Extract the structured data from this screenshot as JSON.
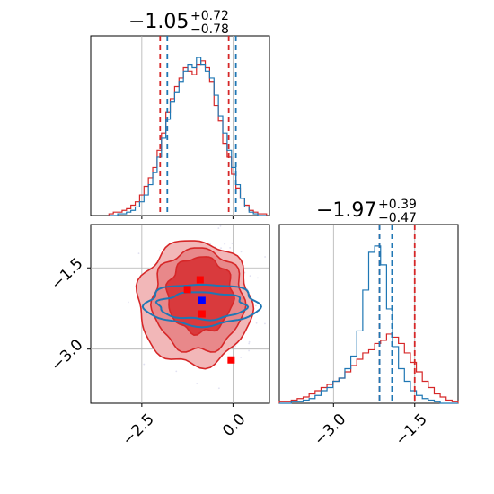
{
  "chart_data": {
    "type": "corner",
    "colors": {
      "red": "#d62728",
      "blue": "#1f77b4",
      "red_fill": "#e8888a",
      "red_dark": "#d62728",
      "marker_red": "#ff0000",
      "marker_blue": "#0000ff",
      "grid": "#b0b0b0"
    },
    "axes": {
      "p1_range": [
        -3.9,
        1.0
      ],
      "p2_range": [
        -4.0,
        -0.7
      ]
    },
    "titles": {
      "p1": {
        "value": "−1.05",
        "plus": "+0.72",
        "minus": "−0.78"
      },
      "p2": {
        "value": "−1.97",
        "plus": "+0.39",
        "minus": "−0.47"
      }
    },
    "ticks": {
      "p1": [
        {
          "value": -2.5,
          "label": "−2.5"
        },
        {
          "value": 0.0,
          "label": "0.0"
        }
      ],
      "p2_x": [
        {
          "value": -3.0,
          "label": "−3.0"
        },
        {
          "value": -1.5,
          "label": "−1.5"
        }
      ],
      "p2_y": [
        {
          "value": -1.5,
          "label": "−1.5"
        },
        {
          "value": -3.0,
          "label": "−3.0"
        }
      ]
    },
    "grid": true,
    "reference_lines": {
      "p1": [
        -1.8,
        0.08
      ],
      "p2": [
        -2.15,
        -1.5
      ]
    },
    "hist_p1": {
      "bins": [
        -3.4,
        -3.28,
        -3.16,
        -3.04,
        -2.92,
        -2.8,
        -2.68,
        -2.56,
        -2.44,
        -2.32,
        -2.2,
        -2.08,
        -1.96,
        -1.84,
        -1.72,
        -1.6,
        -1.48,
        -1.36,
        -1.24,
        -1.12,
        -1.0,
        -0.88,
        -0.76,
        -0.64,
        -0.52,
        -0.4,
        -0.28,
        -0.16,
        -0.04,
        0.08,
        0.2,
        0.32,
        0.44,
        0.56,
        0.68,
        0.8,
        0.92
      ],
      "series": [
        {
          "color": "red",
          "counts": [
            1,
            2,
            2,
            3,
            4,
            6,
            8,
            12,
            17,
            22,
            28,
            38,
            48,
            60,
            68,
            75,
            80,
            86,
            84,
            82,
            88,
            90,
            86,
            78,
            64,
            55,
            42,
            34,
            24,
            16,
            10,
            6,
            3,
            2,
            1,
            1
          ]
        },
        {
          "color": "blue",
          "counts": [
            0,
            0,
            1,
            1,
            2,
            3,
            5,
            8,
            12,
            18,
            25,
            34,
            45,
            56,
            66,
            72,
            78,
            84,
            88,
            86,
            92,
            88,
            84,
            80,
            70,
            58,
            48,
            38,
            28,
            18,
            10,
            5,
            2,
            1,
            0,
            0
          ]
        }
      ]
    },
    "hist_p2": {
      "bins": [
        -4.0,
        -3.89,
        -3.78,
        -3.67,
        -3.56,
        -3.45,
        -3.34,
        -3.23,
        -3.12,
        -3.01,
        -2.9,
        -2.79,
        -2.68,
        -2.57,
        -2.46,
        -2.35,
        -2.24,
        -2.13,
        -2.02,
        -1.91,
        -1.8,
        -1.69,
        -1.58,
        -1.47,
        -1.36,
        -1.25,
        -1.14,
        -1.03,
        -0.92,
        -0.81,
        -0.7
      ],
      "series": [
        {
          "color": "red",
          "counts": [
            1,
            1,
            2,
            3,
            4,
            6,
            8,
            10,
            12,
            14,
            16,
            20,
            24,
            28,
            32,
            34,
            38,
            40,
            44,
            42,
            38,
            32,
            26,
            20,
            14,
            10,
            6,
            4,
            2,
            1
          ]
        },
        {
          "color": "blue",
          "counts": [
            0,
            0,
            1,
            1,
            2,
            3,
            5,
            8,
            10,
            14,
            16,
            22,
            30,
            46,
            72,
            96,
            100,
            88,
            60,
            36,
            22,
            14,
            8,
            5,
            3,
            2,
            1,
            0,
            0,
            0
          ]
        }
      ]
    },
    "contour_2d": {
      "red_levels": [
        {
          "center": [
            -1.05,
            -2.15
          ],
          "rx": 1.55,
          "ry": 1.15
        },
        {
          "center": [
            -0.95,
            -2.1
          ],
          "rx": 1.25,
          "ry": 0.95
        },
        {
          "center": [
            -0.9,
            -2.0
          ],
          "rx": 0.9,
          "ry": 0.7
        }
      ],
      "blue_levels": [
        {
          "center": [
            -0.85,
            -2.18
          ],
          "rx": 1.55,
          "ry": 0.38
        },
        {
          "center": [
            -0.85,
            -2.2
          ],
          "rx": 1.2,
          "ry": 0.25
        }
      ],
      "markers": [
        {
          "x": -0.9,
          "y": -1.72,
          "color": "red"
        },
        {
          "x": -1.25,
          "y": -1.9,
          "color": "red"
        },
        {
          "x": -0.85,
          "y": -2.35,
          "color": "red"
        },
        {
          "x": -0.05,
          "y": -3.2,
          "color": "red"
        },
        {
          "x": -0.85,
          "y": -2.1,
          "color": "blue"
        }
      ]
    }
  }
}
